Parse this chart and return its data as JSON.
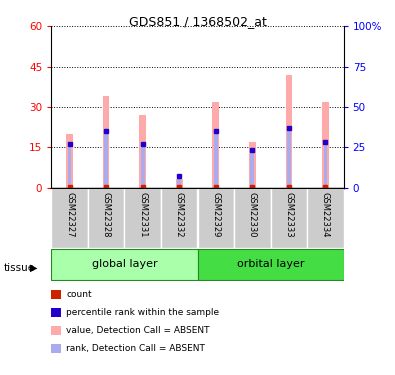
{
  "title": "GDS851 / 1368502_at",
  "samples": [
    "GSM22327",
    "GSM22328",
    "GSM22331",
    "GSM22332",
    "GSM22329",
    "GSM22330",
    "GSM22333",
    "GSM22334"
  ],
  "group0_name": "global layer",
  "group0_color": "#AAFFAA",
  "group1_name": "orbital layer",
  "group1_color": "#44DD44",
  "pink_values": [
    20,
    34,
    27,
    3,
    32,
    17,
    42,
    32
  ],
  "blue_values": [
    27,
    35,
    27,
    7,
    35,
    23,
    37,
    28
  ],
  "ylim_left": [
    0,
    60
  ],
  "ylim_right": [
    0,
    100
  ],
  "yticks_left": [
    0,
    15,
    30,
    45,
    60
  ],
  "yticks_right": [
    0,
    25,
    50,
    75,
    100
  ],
  "yticklabels_right": [
    "0",
    "25",
    "50",
    "75",
    "100%"
  ],
  "pink_color": "#FFAAAA",
  "blue_color": "#AAAAEE",
  "red_sq_color": "#CC2200",
  "blue_sq_color": "#2200CC",
  "tissue_label": "tissue",
  "legend_items": [
    {
      "color": "#CC2200",
      "label": "count"
    },
    {
      "color": "#2200CC",
      "label": "percentile rank within the sample"
    },
    {
      "color": "#FFAAAA",
      "label": "value, Detection Call = ABSENT"
    },
    {
      "color": "#AAAAEE",
      "label": "rank, Detection Call = ABSENT"
    }
  ]
}
